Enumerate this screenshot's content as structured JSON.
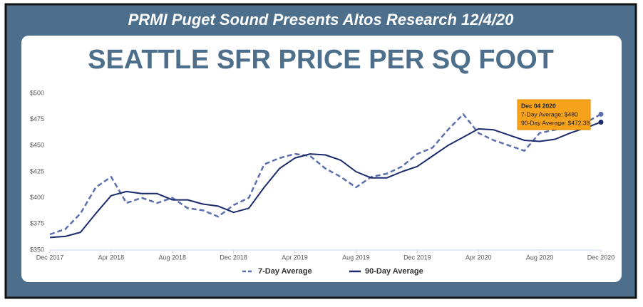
{
  "header": "PRMI Puget Sound Presents Altos Research 12/4/20",
  "chart_data": {
    "type": "line",
    "title": "SEATTLE SFR PRICE PER SQ FOOT",
    "categories": [
      "Dec 2017",
      null,
      null,
      null,
      "Apr 2018",
      null,
      null,
      null,
      "Aug 2018",
      null,
      null,
      null,
      "Dec 2018",
      null,
      null,
      null,
      "Apr 2019",
      null,
      null,
      null,
      "Aug 2019",
      null,
      null,
      null,
      "Dec 2019",
      null,
      null,
      null,
      "Apr 2020",
      null,
      null,
      null,
      "Aug 2020",
      null,
      null,
      null,
      "Dec 2020"
    ],
    "series": [
      {
        "name": "7-Day Average",
        "color": "#5b6fae",
        "dash": true,
        "values": [
          365,
          370,
          385,
          410,
          420,
          395,
          400,
          395,
          400,
          390,
          388,
          382,
          393,
          400,
          432,
          438,
          442,
          440,
          428,
          420,
          410,
          420,
          423,
          430,
          442,
          448,
          465,
          480,
          462,
          455,
          450,
          445,
          462,
          465,
          470,
          472,
          480
        ]
      },
      {
        "name": "90-Day Average",
        "color": "#1b2a6b",
        "dash": false,
        "values": [
          362,
          363,
          367,
          385,
          402,
          406,
          404,
          404,
          398,
          398,
          394,
          392,
          386,
          390,
          410,
          428,
          438,
          442,
          441,
          436,
          425,
          419,
          419,
          425,
          430,
          440,
          450,
          458,
          466,
          465,
          460,
          455,
          454,
          456,
          462,
          467,
          472.38
        ]
      }
    ],
    "ylim": [
      350,
      500
    ],
    "yticks": [
      {
        "value": 350,
        "label": "$350"
      },
      {
        "value": 375,
        "label": "$375"
      },
      {
        "value": 400,
        "label": "$400"
      },
      {
        "value": 425,
        "label": "$425"
      },
      {
        "value": 450,
        "label": "$450"
      },
      {
        "value": 475,
        "label": "$475"
      },
      {
        "value": 500,
        "label": "$500"
      }
    ],
    "grid": false,
    "legend": "bottom",
    "tooltip": [
      "Dec 04 2020",
      "7-Day Average: $480",
      "90-Day Average: $472.38"
    ]
  }
}
